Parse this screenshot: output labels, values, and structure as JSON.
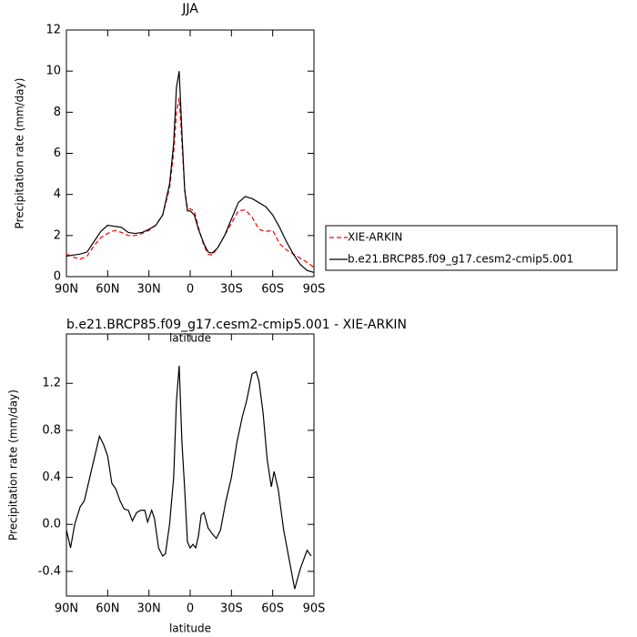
{
  "chart_data": [
    {
      "type": "line",
      "title": "JJA",
      "xlabel": "latitude",
      "ylabel": "Precipitation rate (mm/day)",
      "x": [
        90,
        85,
        80,
        75,
        70,
        65,
        60,
        55,
        50,
        45,
        40,
        35,
        30,
        25,
        20,
        15,
        12,
        10,
        8,
        6,
        4,
        2,
        0,
        -3,
        -6,
        -10,
        -13,
        -16,
        -20,
        -25,
        -30,
        -35,
        -40,
        -45,
        -50,
        -55,
        -60,
        -65,
        -70,
        -75,
        -80,
        -85,
        -90
      ],
      "series": [
        {
          "name": "XIE-ARKIN",
          "color": "#ff0000",
          "style": "dashed",
          "values": [
            1.1,
            0.95,
            0.85,
            1.0,
            1.5,
            1.9,
            2.1,
            2.25,
            2.15,
            2.0,
            2.0,
            2.1,
            2.25,
            2.5,
            3.0,
            4.3,
            6.0,
            8.0,
            8.7,
            6.5,
            4.3,
            3.3,
            3.3,
            3.2,
            2.4,
            1.5,
            1.1,
            1.05,
            1.4,
            2.0,
            2.6,
            3.2,
            3.25,
            2.9,
            2.3,
            2.2,
            2.25,
            1.6,
            1.3,
            1.1,
            0.9,
            0.7,
            0.45
          ]
        },
        {
          "name": "b.e21.BRCP85.f09_g17.cesm2-cmip5.001",
          "color": "#000000",
          "style": "solid",
          "values": [
            1.0,
            1.05,
            1.1,
            1.2,
            1.7,
            2.2,
            2.5,
            2.45,
            2.4,
            2.15,
            2.1,
            2.15,
            2.3,
            2.5,
            3.0,
            4.5,
            6.5,
            9.2,
            10.0,
            7.0,
            4.2,
            3.2,
            3.2,
            3.0,
            2.3,
            1.6,
            1.2,
            1.15,
            1.4,
            2.0,
            2.8,
            3.6,
            3.9,
            3.8,
            3.6,
            3.4,
            3.0,
            2.4,
            1.7,
            1.1,
            0.6,
            0.3,
            0.2
          ]
        }
      ],
      "xlim": [
        90,
        -90
      ],
      "xticks": [
        {
          "value": 90,
          "label": "90N"
        },
        {
          "value": 60,
          "label": "60N"
        },
        {
          "value": 30,
          "label": "30N"
        },
        0,
        {
          "value": -30,
          "label": "30S"
        },
        {
          "value": -60,
          "label": "60S"
        },
        {
          "value": -90,
          "label": "90S"
        }
      ],
      "ylim": [
        0,
        12
      ],
      "yticks": [
        0,
        2,
        4,
        6,
        8,
        10,
        12
      ],
      "legend": "right"
    },
    {
      "type": "line",
      "title": "b.e21.BRCP85.f09_g17.cesm2-cmip5.001 - XIE-ARKIN",
      "xlabel": "latitude",
      "ylabel": "Precipitation rate (mm/day)",
      "x": [
        90,
        87,
        84,
        80,
        77,
        73,
        70,
        66,
        63,
        60,
        57,
        54,
        51,
        48,
        45,
        42,
        39,
        36,
        33,
        31,
        28,
        26,
        23,
        20,
        18,
        15,
        12,
        10,
        8,
        6,
        4,
        2,
        0,
        -2,
        -4,
        -6,
        -8,
        -10,
        -13,
        -16,
        -19,
        -22,
        -26,
        -30,
        -34,
        -38,
        -41,
        -45,
        -48,
        -50,
        -53,
        -56,
        -59,
        -61,
        -64,
        -68,
        -72,
        -76,
        -80,
        -85,
        -88
      ],
      "series": [
        {
          "color": "#000000",
          "style": "solid",
          "values": [
            -0.05,
            -0.2,
            0.0,
            0.15,
            0.2,
            0.4,
            0.55,
            0.75,
            0.68,
            0.58,
            0.35,
            0.3,
            0.2,
            0.13,
            0.12,
            0.03,
            0.1,
            0.12,
            0.12,
            0.02,
            0.12,
            0.05,
            -0.2,
            -0.27,
            -0.25,
            0.0,
            0.4,
            1.05,
            1.35,
            0.7,
            0.3,
            -0.15,
            -0.2,
            -0.17,
            -0.2,
            -0.1,
            0.08,
            0.1,
            -0.03,
            -0.08,
            -0.12,
            -0.05,
            0.2,
            0.4,
            0.7,
            0.92,
            1.05,
            1.28,
            1.3,
            1.22,
            0.95,
            0.55,
            0.32,
            0.45,
            0.3,
            -0.05,
            -0.3,
            -0.55,
            -0.38,
            -0.22,
            -0.27
          ]
        }
      ],
      "xlim": [
        90,
        -90
      ],
      "xticks": [
        {
          "value": 90,
          "label": "90N"
        },
        {
          "value": 60,
          "label": "60N"
        },
        {
          "value": 30,
          "label": "30N"
        },
        0,
        {
          "value": -30,
          "label": "30S"
        },
        {
          "value": -60,
          "label": "60S"
        },
        {
          "value": -90,
          "label": "90S"
        }
      ],
      "ylim": [
        -0.61,
        1.62
      ],
      "yticks": [
        -0.4,
        {
          "value": 0,
          "label": "0.0"
        },
        0.4,
        0.8,
        1.2
      ]
    }
  ]
}
